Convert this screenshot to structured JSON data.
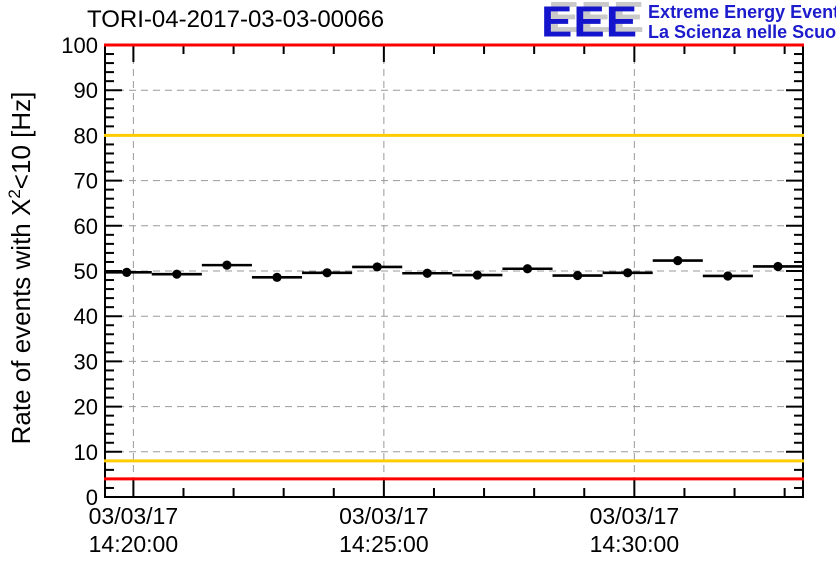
{
  "header": {
    "title": "TORI-04-2017-03-03-00066"
  },
  "logo": {
    "acronym": "EEE",
    "line1": "Extreme Energy Events",
    "line2": "La Scienza nelle Scuole",
    "blue": "#1c1ccd",
    "shadow_gray": "#c9c9c9"
  },
  "chart_data": {
    "type": "scatter",
    "title": "TORI-04-2017-03-03-00066",
    "ylabel": "Rate of events with X^2<10 [Hz]",
    "ylabel_parts": {
      "prefix": "Rate of events with X",
      "sup": "2",
      "suffix": "<10 [Hz]"
    },
    "xlabel": "",
    "ylim": [
      0,
      100
    ],
    "y_major_step": 10,
    "y_minor_step": 2,
    "x_axis": {
      "unit": "seconds relative to 14:20:00 on 03/03/17",
      "xlim_sec": [
        -34,
        802
      ],
      "minor_step_sec": 60,
      "major_ticks": [
        {
          "sec": 0,
          "date": "03/03/17",
          "time": "14:20:00"
        },
        {
          "sec": 300,
          "date": "03/03/17",
          "time": "14:25:00"
        },
        {
          "sec": 600,
          "date": "03/03/17",
          "time": "14:30:00"
        }
      ]
    },
    "grid": {
      "h_lines": [
        10,
        20,
        30,
        40,
        50,
        60,
        70,
        80,
        90
      ],
      "vertical_at_major_ticks": true,
      "style": "dashed",
      "color": "#999999"
    },
    "reference_lines": [
      {
        "y": 100,
        "color": "#ff0000"
      },
      {
        "y": 80,
        "color": "#ffcc00"
      },
      {
        "y": 8,
        "color": "#ffcc00"
      },
      {
        "y": 4,
        "color": "#ff0000"
      }
    ],
    "series": [
      {
        "name": "rate",
        "marker": "filled-circle",
        "color": "#000000",
        "x_halfwidth_sec": 30,
        "y_err": 0.8,
        "points": [
          {
            "sec": -8,
            "time": "14:19:52",
            "y": 49.7
          },
          {
            "sec": 52,
            "time": "14:20:52",
            "y": 49.3
          },
          {
            "sec": 112,
            "time": "14:21:52",
            "y": 51.3
          },
          {
            "sec": 172,
            "time": "14:22:52",
            "y": 48.6
          },
          {
            "sec": 232,
            "time": "14:23:52",
            "y": 49.6
          },
          {
            "sec": 292,
            "time": "14:24:52",
            "y": 50.9
          },
          {
            "sec": 352,
            "time": "14:25:52",
            "y": 49.5
          },
          {
            "sec": 412,
            "time": "14:26:52",
            "y": 49.1
          },
          {
            "sec": 472,
            "time": "14:27:52",
            "y": 50.5
          },
          {
            "sec": 532,
            "time": "14:28:52",
            "y": 49.0
          },
          {
            "sec": 592,
            "time": "14:29:52",
            "y": 49.6
          },
          {
            "sec": 652,
            "time": "14:30:52",
            "y": 52.3
          },
          {
            "sec": 712,
            "time": "14:31:52",
            "y": 48.9
          },
          {
            "sec": 772,
            "time": "14:32:52",
            "y": 51.0
          }
        ]
      }
    ]
  }
}
